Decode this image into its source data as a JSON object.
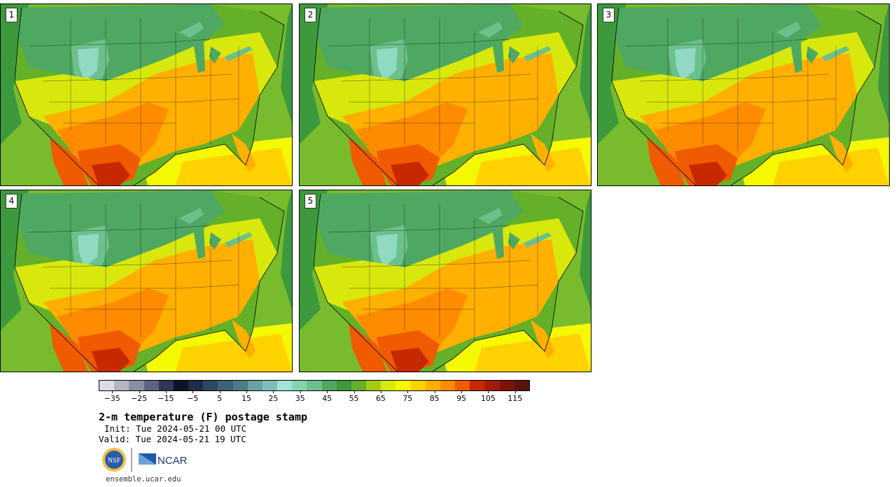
{
  "panels": [
    {
      "label": "1"
    },
    {
      "label": "2"
    },
    {
      "label": "3"
    },
    {
      "label": "4"
    },
    {
      "label": "5"
    }
  ],
  "colorbar": {
    "colors": [
      "#dcdce6",
      "#b4b6c4",
      "#8a8ea4",
      "#5e6480",
      "#2e3654",
      "#0c1428",
      "#1e2c48",
      "#2e4864",
      "#3c6274",
      "#4c7c86",
      "#68a2a2",
      "#82bcb8",
      "#a0e4d8",
      "#88d4b0",
      "#6cc08c",
      "#4fa862",
      "#3c9a3c",
      "#64b028",
      "#a4cc14",
      "#d8e80c",
      "#f4f800",
      "#ffd200",
      "#ffb000",
      "#ff8c00",
      "#f05a00",
      "#c82800",
      "#a01c08",
      "#7c1208",
      "#5a140c"
    ],
    "tick_labels": [
      "−35",
      "−25",
      "−15",
      "−5",
      "5",
      "15",
      "25",
      "35",
      "45",
      "55",
      "65",
      "75",
      "85",
      "95",
      "105",
      "115"
    ],
    "range": [
      -40,
      120
    ]
  },
  "title": "2-m temperature (F) postage stamp",
  "init": "Init: Tue 2024-05-21 00 UTC",
  "valid": "Valid: Tue 2024-05-21 19 UTC",
  "logos": {
    "nsf": "NSF",
    "ncar": "NCAR"
  },
  "url": "ensemble.ucar.edu"
}
